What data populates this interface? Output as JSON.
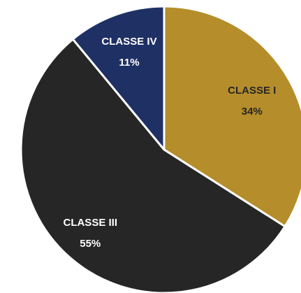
{
  "chart_data": {
    "type": "pie",
    "categories": [
      "CLASSE I",
      "CLASSE III",
      "CLASSE IV"
    ],
    "values": [
      34,
      55,
      11
    ],
    "value_labels": [
      "34%",
      "55%",
      "11%"
    ],
    "colors": [
      "#b58d2a",
      "#262626",
      "#1f3064"
    ]
  }
}
